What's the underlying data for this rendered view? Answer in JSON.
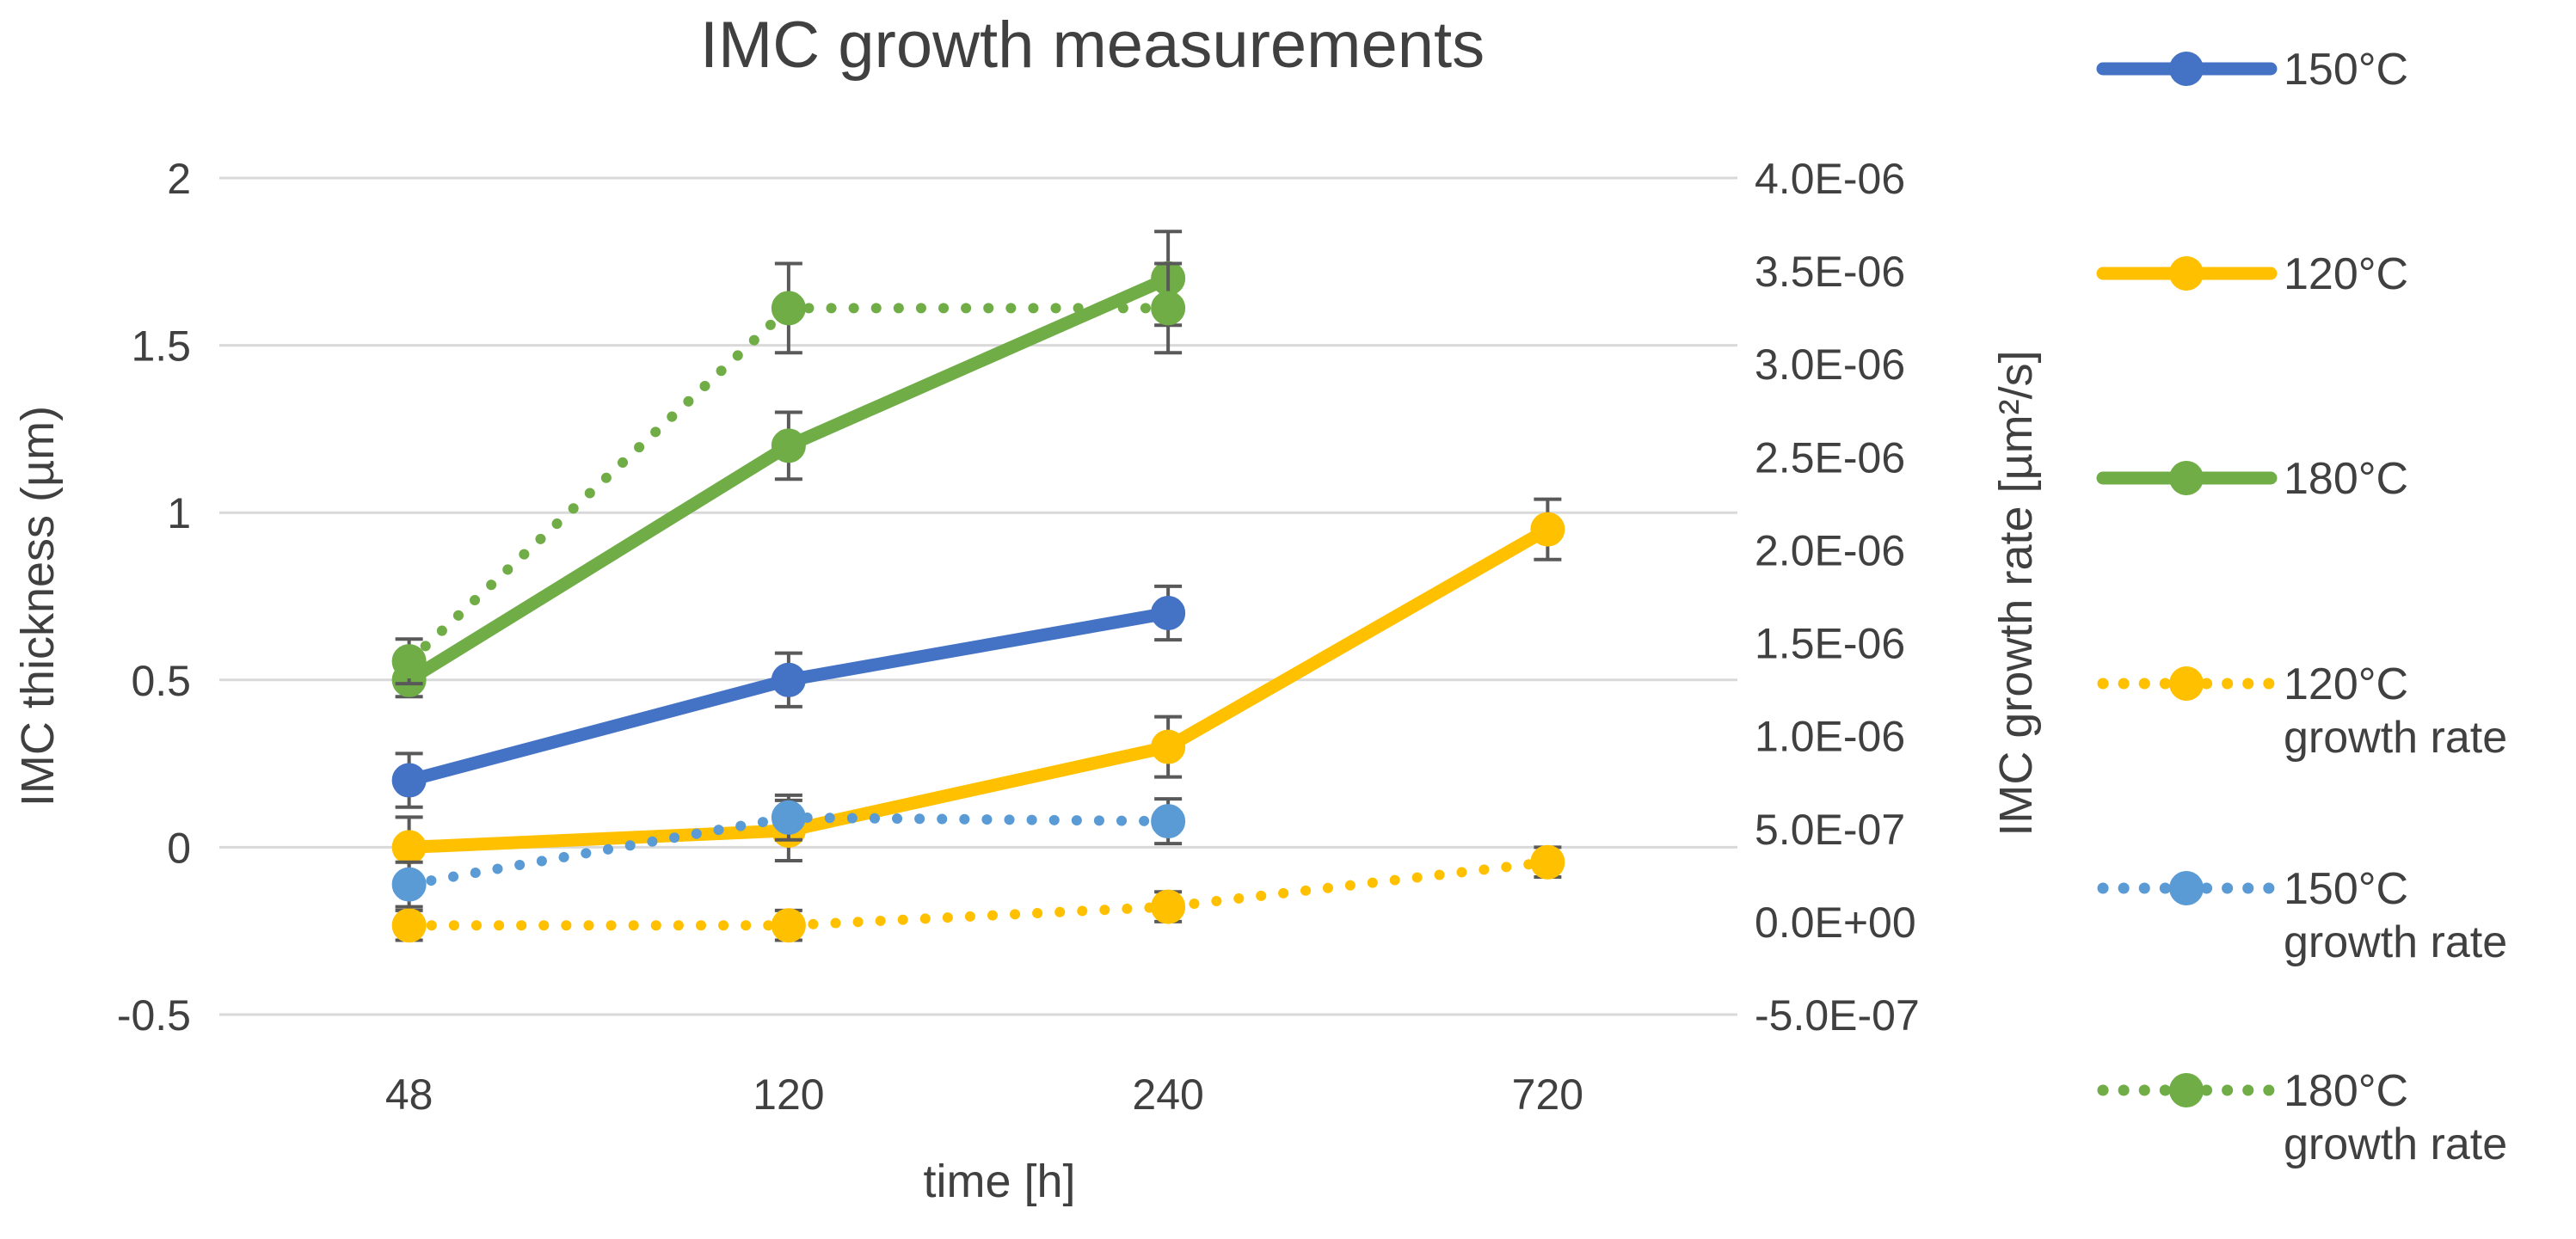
{
  "chart_data": {
    "type": "line",
    "title": "IMC growth measurements",
    "xlabel": "time [h]",
    "ylabel": "IMC thickness (µm)",
    "y2label": "IMC growth rate [µm²/s]",
    "categories": [
      "48",
      "120",
      "240",
      "720"
    ],
    "ylim": [
      -0.5,
      2
    ],
    "yticks": [
      -0.5,
      0,
      0.5,
      1,
      1.5,
      2
    ],
    "ytick_labels": [
      "-0.5",
      "0",
      "0.5",
      "1",
      "1.5",
      "2"
    ],
    "y2lim": [
      -5e-07,
      4e-06
    ],
    "y2ticks": [
      -5e-07,
      0,
      5e-07,
      1e-06,
      1.5e-06,
      2e-06,
      2.5e-06,
      3e-06,
      3.5e-06,
      4e-06
    ],
    "y2tick_labels": [
      "-5.0E-07",
      "0.0E+00",
      "5.0E-07",
      "1.0E-06",
      "1.5E-06",
      "2.0E-06",
      "2.5E-06",
      "3.0E-06",
      "3.5E-06",
      "4.0E-06"
    ],
    "grid": true,
    "legend_position": "right",
    "series": [
      {
        "name": "150°C",
        "legend": [
          "150°C"
        ],
        "color": "#4472C4",
        "style": "solid",
        "axis": "left",
        "values": [
          0.2,
          0.5,
          0.7,
          null
        ],
        "errors": [
          0.08,
          0.08,
          0.08,
          null
        ]
      },
      {
        "name": "120°C",
        "legend": [
          "120°C"
        ],
        "color": "#FFC000",
        "style": "solid",
        "axis": "left",
        "values": [
          0.0,
          0.05,
          0.3,
          0.95
        ],
        "errors": [
          0.09,
          0.09,
          0.09,
          0.09
        ]
      },
      {
        "name": "180°C",
        "legend": [
          "180°C"
        ],
        "color": "#70AD47",
        "style": "solid",
        "axis": "left",
        "values": [
          0.5,
          1.2,
          1.7,
          null
        ],
        "errors": [
          0.05,
          0.1,
          0.14,
          null
        ]
      },
      {
        "name": "120°C growth rate",
        "legend": [
          "120°C",
          "growth rate"
        ],
        "color": "#FFC000",
        "style": "dotted",
        "axis": "right",
        "values": [
          -2e-08,
          -2e-08,
          8e-08,
          3.2e-07
        ],
        "errors": [
          8e-08,
          8e-08,
          8e-08,
          8e-08
        ]
      },
      {
        "name": "150°C growth rate",
        "legend": [
          "150°C",
          "growth rate"
        ],
        "color": "#5B9BD5",
        "style": "dotted",
        "axis": "right",
        "values": [
          2e-07,
          5.6e-07,
          5.4e-07,
          null
        ],
        "errors": [
          1.2e-07,
          1.2e-07,
          1.2e-07,
          null
        ]
      },
      {
        "name": "180°C growth rate",
        "legend": [
          "180°C",
          "growth rate"
        ],
        "color": "#70AD47",
        "style": "dotted",
        "axis": "right",
        "values": [
          1.4e-06,
          3.3e-06,
          3.3e-06,
          null
        ],
        "errors": [
          1.2e-07,
          2.4e-07,
          2.4e-07,
          null
        ]
      }
    ]
  }
}
